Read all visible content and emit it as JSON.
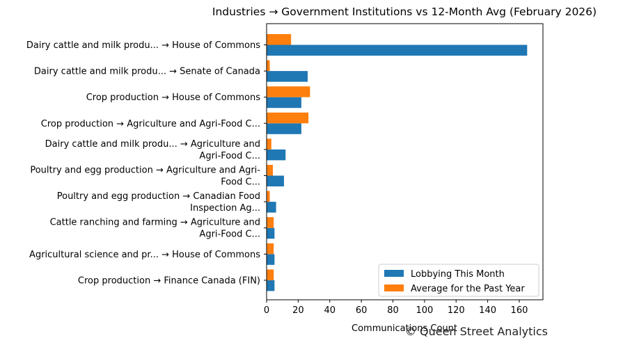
{
  "chart_data": {
    "type": "bar",
    "orientation": "horizontal",
    "title": "Industries → Government Institutions vs 12-Month Avg (February 2026)",
    "xlabel": "Communications Count",
    "ylabel": "",
    "xlim": [
      0,
      175
    ],
    "xticks": [
      0,
      20,
      40,
      60,
      80,
      100,
      120,
      140,
      160
    ],
    "grid": false,
    "legend_position": "lower-right",
    "categories": [
      [
        "Dairy cattle and milk produ... → House of Commons"
      ],
      [
        "Dairy cattle and milk produ... → Senate of Canada"
      ],
      [
        "Crop production → House of Commons"
      ],
      [
        "Crop production → Agriculture and Agri-Food C..."
      ],
      [
        "Dairy cattle and milk produ... → Agriculture and",
        "Agri-Food C..."
      ],
      [
        "Poultry and egg production → Agriculture and Agri-",
        "Food C..."
      ],
      [
        "Poultry and egg production → Canadian Food",
        "Inspection Ag..."
      ],
      [
        "Cattle ranching and farming → Agriculture and",
        "Agri-Food C..."
      ],
      [
        "Agricultural science and pr... → House of Commons"
      ],
      [
        "Crop production → Finance Canada (FIN)"
      ]
    ],
    "series": [
      {
        "name": "Lobbying This Month",
        "color": "#1f77b4",
        "values": [
          165,
          26,
          22,
          22,
          12,
          11,
          6,
          5,
          5,
          5
        ]
      },
      {
        "name": "Average for the Past Year",
        "color": "#ff7f0e",
        "values": [
          15.5,
          2,
          27.5,
          26.5,
          3,
          4,
          2,
          4.5,
          4.5,
          4.5
        ]
      }
    ]
  },
  "watermark": "© Queen Street Analytics"
}
